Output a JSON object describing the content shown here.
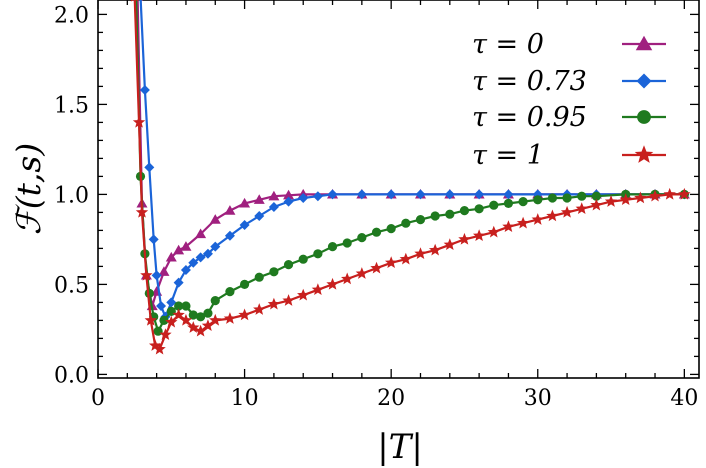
{
  "chart_data": {
    "type": "line",
    "xlabel": "|T|",
    "ylabel": "ℱ(t,s)",
    "xlim": [
      0,
      41
    ],
    "ylim": [
      -0.02,
      2.08
    ],
    "xticks": [
      0,
      10,
      20,
      30,
      40
    ],
    "xtick_labels": [
      "0",
      "10",
      "20",
      "30",
      "40"
    ],
    "yticks": [
      0.0,
      0.5,
      1.0,
      1.5,
      2.0
    ],
    "ytick_labels": [
      "0.0",
      "0.5",
      "1.0",
      "1.5",
      "2.0"
    ],
    "grid": false,
    "legend_position": "top-right",
    "series": [
      {
        "name": "τ = 0",
        "color": "#a0207f",
        "marker": "triangle",
        "points": [
          [
            2.7,
            2.1
          ],
          [
            3.0,
            0.95
          ],
          [
            3.3,
            0.55
          ],
          [
            3.7,
            0.38
          ],
          [
            4.0,
            0.46
          ],
          [
            4.5,
            0.57
          ],
          [
            5.0,
            0.65
          ],
          [
            5.5,
            0.69
          ],
          [
            6.0,
            0.71
          ],
          [
            7.0,
            0.78
          ],
          [
            8.0,
            0.86
          ],
          [
            9.0,
            0.91
          ],
          [
            10.0,
            0.95
          ],
          [
            11.0,
            0.97
          ],
          [
            12.0,
            0.99
          ],
          [
            13.0,
            0.995
          ],
          [
            14.0,
            1.0
          ],
          [
            16,
            1.0
          ],
          [
            18,
            1.0
          ],
          [
            20,
            1.0
          ],
          [
            22,
            1.0
          ],
          [
            24,
            1.0
          ],
          [
            26,
            1.0
          ],
          [
            28,
            1.0
          ],
          [
            30,
            1.0
          ],
          [
            32,
            1.0
          ],
          [
            34,
            1.0
          ],
          [
            36,
            1.0
          ],
          [
            38,
            1.0
          ],
          [
            40,
            1.0
          ]
        ]
      },
      {
        "name": "τ = 0.73",
        "color": "#1b64d8",
        "marker": "diamond",
        "points": [
          [
            2.9,
            2.1
          ],
          [
            3.2,
            1.58
          ],
          [
            3.5,
            1.15
          ],
          [
            3.8,
            0.75
          ],
          [
            4.0,
            0.55
          ],
          [
            4.3,
            0.38
          ],
          [
            4.6,
            0.32
          ],
          [
            5.0,
            0.4
          ],
          [
            5.5,
            0.51
          ],
          [
            6.0,
            0.58
          ],
          [
            6.5,
            0.62
          ],
          [
            7.0,
            0.65
          ],
          [
            7.5,
            0.67
          ],
          [
            8.0,
            0.71
          ],
          [
            9.0,
            0.77
          ],
          [
            10.0,
            0.83
          ],
          [
            11.0,
            0.88
          ],
          [
            12.0,
            0.93
          ],
          [
            13.0,
            0.96
          ],
          [
            14.0,
            0.98
          ],
          [
            15.0,
            0.99
          ],
          [
            16,
            1.0
          ],
          [
            18,
            1.0
          ],
          [
            20,
            1.0
          ],
          [
            22,
            1.0
          ],
          [
            24,
            1.0
          ],
          [
            26,
            1.0
          ],
          [
            28,
            1.0
          ],
          [
            30,
            1.0
          ],
          [
            32,
            1.0
          ],
          [
            34,
            1.0
          ],
          [
            36,
            1.0
          ],
          [
            38,
            1.0
          ],
          [
            40,
            1.0
          ]
        ]
      },
      {
        "name": "τ = 0.95",
        "color": "#1f7a1f",
        "marker": "circle",
        "points": [
          [
            2.6,
            2.1
          ],
          [
            2.9,
            1.1
          ],
          [
            3.2,
            0.67
          ],
          [
            3.5,
            0.45
          ],
          [
            3.8,
            0.32
          ],
          [
            4.1,
            0.24
          ],
          [
            4.5,
            0.3
          ],
          [
            5.0,
            0.35
          ],
          [
            5.5,
            0.38
          ],
          [
            6.0,
            0.38
          ],
          [
            6.5,
            0.33
          ],
          [
            7.0,
            0.32
          ],
          [
            7.5,
            0.34
          ],
          [
            8.0,
            0.41
          ],
          [
            9.0,
            0.46
          ],
          [
            10.0,
            0.5
          ],
          [
            11.0,
            0.54
          ],
          [
            12.0,
            0.57
          ],
          [
            13.0,
            0.61
          ],
          [
            14.0,
            0.64
          ],
          [
            15.0,
            0.67
          ],
          [
            16.0,
            0.71
          ],
          [
            17.0,
            0.73
          ],
          [
            18.0,
            0.76
          ],
          [
            19.0,
            0.79
          ],
          [
            20.0,
            0.81
          ],
          [
            21.0,
            0.84
          ],
          [
            22.0,
            0.86
          ],
          [
            23.0,
            0.88
          ],
          [
            24.0,
            0.89
          ],
          [
            25.0,
            0.91
          ],
          [
            26.0,
            0.92
          ],
          [
            27.0,
            0.94
          ],
          [
            28.0,
            0.95
          ],
          [
            29.0,
            0.96
          ],
          [
            30.0,
            0.97
          ],
          [
            31.0,
            0.98
          ],
          [
            32.0,
            0.98
          ],
          [
            33.0,
            0.99
          ],
          [
            34.0,
            0.99
          ],
          [
            36.0,
            1.0
          ],
          [
            38.0,
            1.0
          ],
          [
            40.0,
            1.0
          ]
        ]
      },
      {
        "name": "τ = 1",
        "color": "#c8201e",
        "marker": "star",
        "points": [
          [
            2.5,
            2.1
          ],
          [
            2.8,
            1.4
          ],
          [
            3.0,
            0.9
          ],
          [
            3.3,
            0.55
          ],
          [
            3.6,
            0.3
          ],
          [
            3.9,
            0.16
          ],
          [
            4.2,
            0.14
          ],
          [
            4.6,
            0.22
          ],
          [
            5.0,
            0.29
          ],
          [
            5.5,
            0.33
          ],
          [
            6.0,
            0.3
          ],
          [
            6.5,
            0.26
          ],
          [
            7.0,
            0.24
          ],
          [
            7.5,
            0.27
          ],
          [
            8.0,
            0.3
          ],
          [
            9.0,
            0.31
          ],
          [
            10.0,
            0.33
          ],
          [
            11.0,
            0.36
          ],
          [
            12.0,
            0.39
          ],
          [
            13.0,
            0.41
          ],
          [
            14.0,
            0.44
          ],
          [
            15.0,
            0.47
          ],
          [
            16.0,
            0.5
          ],
          [
            17.0,
            0.53
          ],
          [
            18.0,
            0.56
          ],
          [
            19.0,
            0.59
          ],
          [
            20.0,
            0.62
          ],
          [
            21.0,
            0.64
          ],
          [
            22.0,
            0.67
          ],
          [
            23.0,
            0.69
          ],
          [
            24.0,
            0.72
          ],
          [
            25.0,
            0.75
          ],
          [
            26.0,
            0.77
          ],
          [
            27.0,
            0.79
          ],
          [
            28.0,
            0.82
          ],
          [
            29.0,
            0.84
          ],
          [
            30.0,
            0.86
          ],
          [
            31.0,
            0.88
          ],
          [
            32.0,
            0.9
          ],
          [
            33.0,
            0.92
          ],
          [
            34.0,
            0.94
          ],
          [
            35.0,
            0.96
          ],
          [
            36.0,
            0.97
          ],
          [
            37.0,
            0.98
          ],
          [
            38.0,
            0.99
          ],
          [
            39.0,
            1.0
          ],
          [
            40.0,
            1.0
          ]
        ]
      }
    ]
  }
}
